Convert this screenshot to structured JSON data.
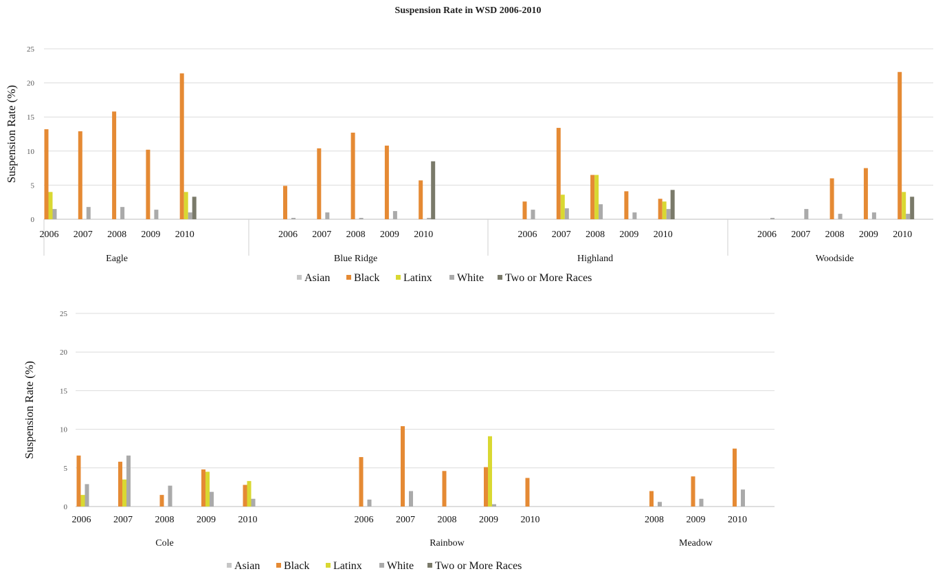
{
  "title": "Suspension Rate in WSD 2006-2010",
  "colors": {
    "Asian": "#c6c6c6",
    "Black": "#e58a34",
    "Latinx": "#d9d832",
    "White": "#aaaaaa",
    "Two or More Races": "#7a7a6a"
  },
  "chart_data": [
    {
      "type": "bar",
      "ylabel": "Suspension Rate (%)",
      "ylim": [
        0,
        25
      ],
      "yticks": [
        0,
        5,
        10,
        15,
        20,
        25
      ],
      "series_names": [
        "Asian",
        "Black",
        "Latinx",
        "White",
        "Two or More Races"
      ],
      "legend": "bottom",
      "grid": true,
      "groups": [
        {
          "name": "Eagle",
          "years": [
            {
              "year": "2006",
              "values": [
                0,
                13.2,
                4.0,
                1.5,
                0
              ]
            },
            {
              "year": "2007",
              "values": [
                0,
                12.9,
                0,
                1.8,
                0
              ]
            },
            {
              "year": "2008",
              "values": [
                0,
                15.8,
                0,
                1.8,
                0
              ]
            },
            {
              "year": "2009",
              "values": [
                0,
                10.2,
                0,
                1.4,
                0
              ]
            },
            {
              "year": "2010",
              "values": [
                0,
                21.4,
                4.0,
                1.0,
                3.3
              ]
            }
          ]
        },
        {
          "name": "Blue Ridge",
          "years": [
            {
              "year": "2006",
              "values": [
                0,
                4.9,
                0,
                0.2,
                0
              ]
            },
            {
              "year": "2007",
              "values": [
                0,
                10.4,
                0,
                1.0,
                0
              ]
            },
            {
              "year": "2008",
              "values": [
                0,
                12.7,
                0,
                0.2,
                0
              ]
            },
            {
              "year": "2009",
              "values": [
                0,
                10.8,
                0,
                1.2,
                0
              ]
            },
            {
              "year": "2010",
              "values": [
                0,
                5.7,
                0,
                0.2,
                8.5
              ]
            }
          ]
        },
        {
          "name": "Highland",
          "years": [
            {
              "year": "2006",
              "values": [
                0,
                2.6,
                0,
                1.4,
                0
              ]
            },
            {
              "year": "2007",
              "values": [
                0,
                13.4,
                3.6,
                1.6,
                0
              ]
            },
            {
              "year": "2008",
              "values": [
                0,
                6.5,
                6.5,
                2.2,
                0
              ]
            },
            {
              "year": "2009",
              "values": [
                0,
                4.1,
                0,
                1.0,
                0
              ]
            },
            {
              "year": "2010",
              "values": [
                0,
                3.0,
                2.6,
                1.5,
                4.3
              ]
            }
          ]
        },
        {
          "name": "Woodside",
          "years": [
            {
              "year": "2006",
              "values": [
                0,
                0,
                0,
                0.2,
                0
              ]
            },
            {
              "year": "2007",
              "values": [
                0,
                0,
                0,
                1.5,
                0
              ]
            },
            {
              "year": "2008",
              "values": [
                0,
                6.0,
                0,
                0.8,
                0
              ]
            },
            {
              "year": "2009",
              "values": [
                0,
                7.5,
                0,
                1.0,
                0
              ]
            },
            {
              "year": "2010",
              "values": [
                0,
                21.6,
                4.0,
                0.8,
                3.3
              ]
            }
          ]
        }
      ]
    },
    {
      "type": "bar",
      "ylabel": "Suspension Rate (%)",
      "ylim": [
        0,
        25
      ],
      "yticks": [
        0,
        5,
        10,
        15,
        20,
        25
      ],
      "series_names": [
        "Asian",
        "Black",
        "Latinx",
        "White",
        "Two or More Races"
      ],
      "legend": "bottom",
      "grid": true,
      "groups": [
        {
          "name": "Cole",
          "years": [
            {
              "year": "2006",
              "values": [
                0,
                6.6,
                1.5,
                2.9,
                0
              ]
            },
            {
              "year": "2007",
              "values": [
                0,
                5.8,
                3.5,
                6.6,
                0
              ]
            },
            {
              "year": "2008",
              "values": [
                0,
                1.5,
                0,
                2.7,
                0
              ]
            },
            {
              "year": "2009",
              "values": [
                0,
                4.8,
                4.5,
                1.9,
                0
              ]
            },
            {
              "year": "2010",
              "values": [
                0,
                2.8,
                3.3,
                1.0,
                0
              ]
            }
          ]
        },
        {
          "name": "Rainbow",
          "years": [
            {
              "year": "2006",
              "values": [
                0,
                6.4,
                0,
                0.9,
                0
              ]
            },
            {
              "year": "2007",
              "values": [
                0,
                10.4,
                0,
                2.0,
                0
              ]
            },
            {
              "year": "2008",
              "values": [
                0,
                4.6,
                0,
                0,
                0
              ]
            },
            {
              "year": "2009",
              "values": [
                0,
                5.1,
                9.1,
                0.3,
                0
              ]
            },
            {
              "year": "2010",
              "values": [
                0,
                3.7,
                0,
                0,
                0
              ]
            }
          ]
        },
        {
          "name": "Meadow",
          "years": [
            {
              "year": "2008",
              "values": [
                0,
                2.0,
                0,
                0.6,
                0
              ]
            },
            {
              "year": "2009",
              "values": [
                0,
                3.9,
                0,
                1.0,
                0
              ]
            },
            {
              "year": "2010",
              "values": [
                0,
                7.5,
                0,
                2.2,
                0
              ]
            }
          ]
        }
      ]
    }
  ]
}
